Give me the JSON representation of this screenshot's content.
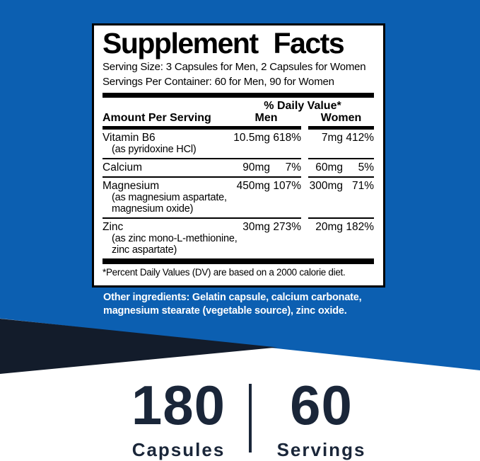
{
  "colors": {
    "background_blue": "#0c5fb1",
    "wedge_navy": "#131c2b",
    "stat_navy": "#1a2639",
    "panel_border": "#000000",
    "other_ingredients_text": "#ffffff"
  },
  "label": {
    "title": "Supplement Facts",
    "serving_size": "Serving Size: 3 Capsules for Men, 2 Capsules for Women",
    "servings_per_container": "Servings Per Container: 60 for Men, 90 for Women",
    "daily_value_header": "% Daily Value*",
    "columns": {
      "amount": "Amount Per Serving",
      "men": "Men",
      "women": "Women"
    },
    "rows": [
      {
        "name": "Vitamin B6",
        "sub": [
          "(as pyridoxine HCl)"
        ],
        "men_amount": "10.5mg",
        "men_dv": "618%",
        "women_amount": "7mg",
        "women_dv": "412%"
      },
      {
        "name": "Calcium",
        "sub": [],
        "men_amount": "90mg",
        "men_dv": "7%",
        "women_amount": "60mg",
        "women_dv": "5%"
      },
      {
        "name": "Magnesium",
        "sub": [
          "(as magnesium aspartate,",
          "magnesium oxide)"
        ],
        "men_amount": "450mg",
        "men_dv": "107%",
        "women_amount": "300mg",
        "women_dv": "71%"
      },
      {
        "name": "Zinc",
        "sub": [
          "(as zinc mono-L-methionine,",
          "zinc aspartate)"
        ],
        "men_amount": "30mg",
        "men_dv": "273%",
        "women_amount": "20mg",
        "women_dv": "182%"
      }
    ],
    "footnote": "*Percent Daily Values (DV) are based on a 2000 calorie diet."
  },
  "other_ingredients": "Other ingredients: Gelatin capsule, calcium carbonate, magnesium stearate (vegetable source), zinc oxide.",
  "stats": {
    "capsules_count": "180",
    "capsules_label": "Capsules",
    "servings_count": "60",
    "servings_label": "Servings"
  }
}
